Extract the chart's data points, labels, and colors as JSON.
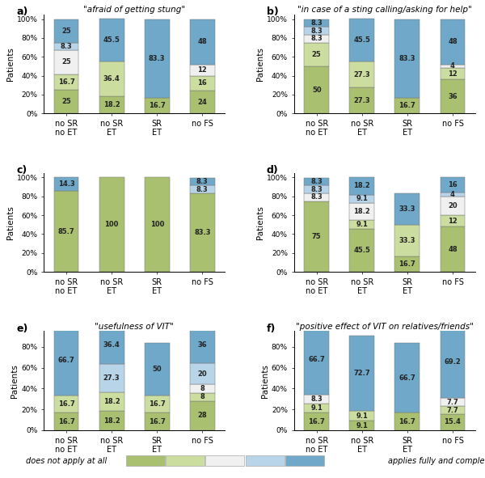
{
  "colors": [
    "#a8c070",
    "#ccdda0",
    "#f0f0f0",
    "#b8d4e8",
    "#6fa8c8"
  ],
  "xlabels": [
    "no SR\nno ET",
    "no SR\nET",
    "SR\nET",
    "no FS"
  ],
  "panels": [
    {
      "label": "a)",
      "title": "\"afraid of getting stung\"",
      "ylim": [
        0,
        105
      ],
      "yticks": [
        0,
        20,
        40,
        60,
        80,
        100
      ],
      "yticklabels": [
        "0%",
        "20%",
        "40%",
        "60%",
        "80%",
        "100%"
      ],
      "bars": [
        [
          25.0,
          16.7,
          25.0,
          8.3,
          25.0
        ],
        [
          18.2,
          36.4,
          0.0,
          0.0,
          45.5
        ],
        [
          16.7,
          0.0,
          0.0,
          0.0,
          83.3
        ],
        [
          24.0,
          16.0,
          12.0,
          0.0,
          48.0
        ]
      ],
      "labels": [
        [
          "25",
          "16.7",
          "25",
          "8.3",
          "25"
        ],
        [
          "18.2",
          "36.4",
          "",
          "",
          "45.5"
        ],
        [
          "16.7",
          "",
          "",
          "",
          "83.3"
        ],
        [
          "24",
          "16",
          "12",
          "",
          "48"
        ]
      ]
    },
    {
      "label": "b)",
      "title": "\"in case of a sting calling/asking for help\"",
      "ylim": [
        0,
        105
      ],
      "yticks": [
        0,
        20,
        40,
        60,
        80,
        100
      ],
      "yticklabels": [
        "0%",
        "20%",
        "40%",
        "60%",
        "80%",
        "100%"
      ],
      "bars": [
        [
          50.0,
          25.0,
          8.3,
          8.3,
          8.3
        ],
        [
          27.3,
          27.3,
          0.0,
          0.0,
          45.5
        ],
        [
          16.7,
          0.0,
          0.0,
          0.0,
          83.3
        ],
        [
          36.0,
          12.0,
          4.0,
          0.0,
          48.0
        ]
      ],
      "labels": [
        [
          "50",
          "25",
          "8.3",
          "8.3",
          "8.3"
        ],
        [
          "27.3",
          "27.3",
          "",
          "",
          "45.5"
        ],
        [
          "16.7",
          "",
          "",
          "",
          "83.3"
        ],
        [
          "36",
          "12",
          "4",
          "",
          "48"
        ]
      ]
    },
    {
      "label": "c)",
      "title": "",
      "ylim": [
        0,
        105
      ],
      "yticks": [
        0,
        20,
        40,
        60,
        80,
        100
      ],
      "yticklabels": [
        "0%",
        "20%",
        "40%",
        "60%",
        "80%",
        "100%"
      ],
      "bars": [
        [
          85.7,
          0.0,
          0.0,
          0.0,
          14.3
        ],
        [
          100.0,
          0.0,
          0.0,
          0.0,
          0.0
        ],
        [
          100.0,
          0.0,
          0.0,
          0.0,
          0.0
        ],
        [
          83.3,
          0.0,
          0.0,
          8.3,
          8.3
        ]
      ],
      "labels": [
        [
          "85.7",
          "",
          "",
          "",
          "14.3"
        ],
        [
          "100",
          "",
          "",
          "",
          ""
        ],
        [
          "100",
          "",
          "",
          "",
          ""
        ],
        [
          "83.3",
          "",
          "",
          "8.3",
          "8.3"
        ]
      ]
    },
    {
      "label": "d)",
      "title": "",
      "ylim": [
        0,
        105
      ],
      "yticks": [
        0,
        20,
        40,
        60,
        80,
        100
      ],
      "yticklabels": [
        "0%",
        "20%",
        "40%",
        "60%",
        "80%",
        "100%"
      ],
      "bars": [
        [
          75.0,
          0.0,
          8.3,
          8.3,
          8.3
        ],
        [
          45.5,
          9.1,
          18.2,
          9.1,
          18.2
        ],
        [
          16.7,
          33.3,
          0.0,
          0.0,
          33.3
        ],
        [
          48.0,
          12.0,
          20.0,
          4.0,
          16.0
        ]
      ],
      "labels": [
        [
          "75",
          "",
          "8.3",
          "8.3",
          "8.3"
        ],
        [
          "45.5",
          "9.1",
          "18.2",
          "9.1",
          "18.2"
        ],
        [
          "16.7",
          "33.3",
          "",
          "",
          "33.3"
        ],
        [
          "48",
          "12",
          "20",
          "4",
          "16"
        ]
      ]
    },
    {
      "label": "e)",
      "title": "\"usefulness of VIT\"",
      "ylim": [
        0,
        95
      ],
      "yticks": [
        0,
        20,
        40,
        60,
        80
      ],
      "yticklabels": [
        "0%",
        "20%",
        "40%",
        "60%",
        "80%"
      ],
      "bars": [
        [
          16.7,
          16.7,
          0.0,
          0.0,
          66.7
        ],
        [
          18.2,
          18.2,
          0.0,
          27.3,
          36.4
        ],
        [
          16.7,
          16.7,
          0.0,
          0.0,
          50.0
        ],
        [
          28.0,
          8.0,
          8.0,
          20.0,
          36.0
        ]
      ],
      "labels": [
        [
          "16.7",
          "16.7",
          "",
          "",
          "66.7"
        ],
        [
          "18.2",
          "18.2",
          "",
          "27.3",
          "36.4"
        ],
        [
          "16.7",
          "16.7",
          "",
          "",
          "50"
        ],
        [
          "28",
          "8",
          "8",
          "20",
          "36"
        ]
      ]
    },
    {
      "label": "f)",
      "title": "\"positive effect of VIT on relatives/friends\"",
      "ylim": [
        0,
        95
      ],
      "yticks": [
        0,
        20,
        40,
        60,
        80
      ],
      "yticklabels": [
        "0%",
        "20%",
        "40%",
        "60%",
        "80%"
      ],
      "bars": [
        [
          16.7,
          9.1,
          8.3,
          0.0,
          66.7
        ],
        [
          9.1,
          9.1,
          0.0,
          0.0,
          72.7
        ],
        [
          16.7,
          0.0,
          0.0,
          0.0,
          66.7
        ],
        [
          15.4,
          7.7,
          7.7,
          0.0,
          69.2
        ]
      ],
      "labels": [
        [
          "16.7",
          "9.1",
          "8.3",
          "",
          "66.7"
        ],
        [
          "9.1",
          "9.1",
          "",
          "",
          "72.7"
        ],
        [
          "16.7",
          "",
          "",
          "",
          "66.7"
        ],
        [
          "15.4",
          "7.7",
          "7.7",
          "",
          "69.2"
        ]
      ]
    }
  ],
  "bar_width": 0.55,
  "ylabel": "Patients",
  "xlabel_fontsize": 7,
  "label_fontsize": 6,
  "ylabel_fontsize": 7.5,
  "title_fontsize": 7.5,
  "panel_label_fontsize": 9,
  "tick_fontsize": 6.5,
  "legend_left_text": "does not apply at all",
  "legend_right_text": "applies fully and completely"
}
